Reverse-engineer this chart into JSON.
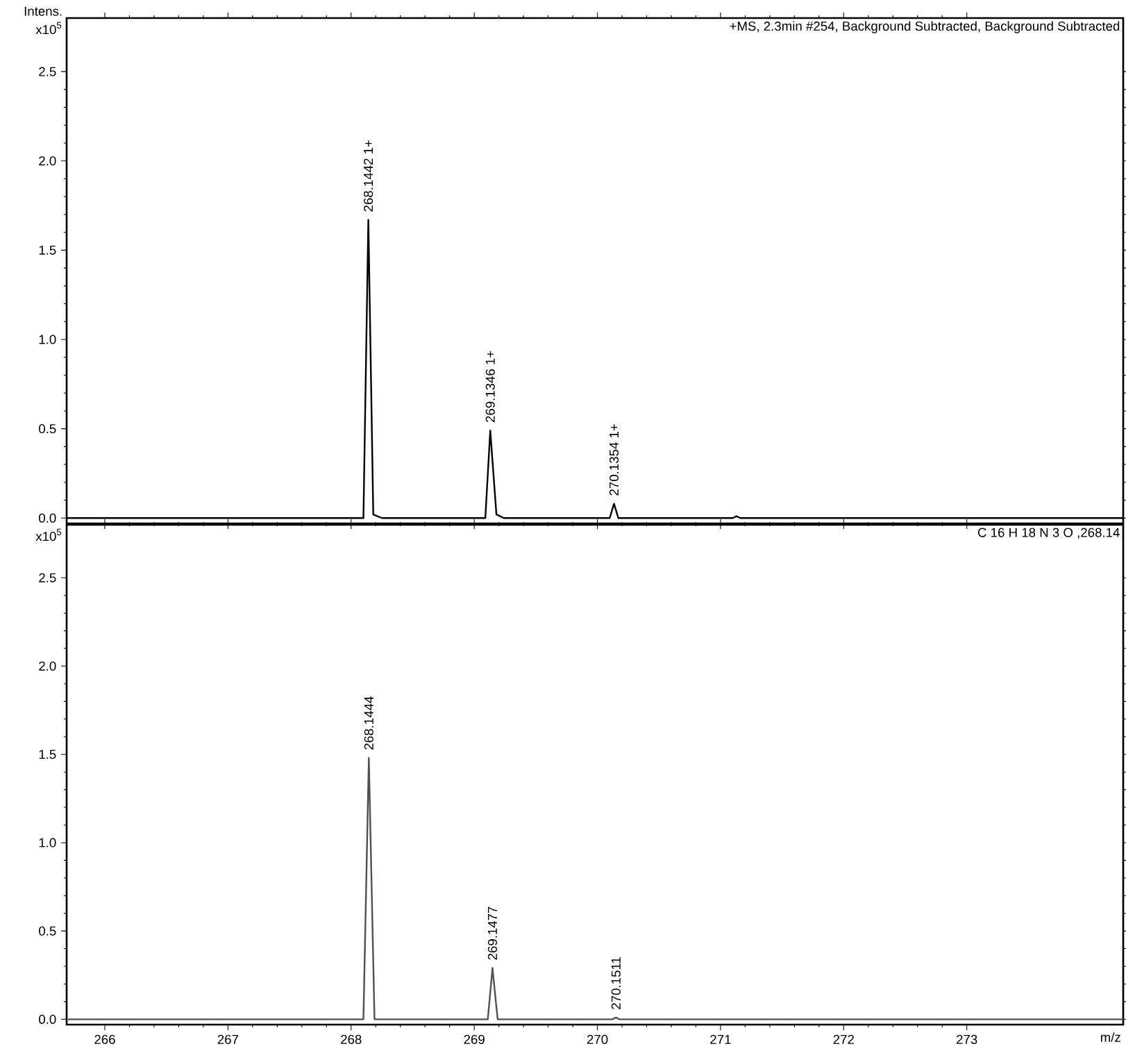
{
  "chart_data": [
    {
      "type": "line",
      "title": "+MS, 2.3min #254, Background Subtracted, Background Subtracted",
      "ylabel": "Intens.",
      "color": "#000000",
      "x": [
        265.69,
        268.1,
        268.14,
        268.18,
        268.25,
        269.09,
        269.13,
        269.18,
        269.24,
        270.1,
        270.135,
        270.17,
        271.1,
        271.13,
        271.16,
        274.27
      ],
      "values": [
        0,
        0,
        1.67,
        0.02,
        0,
        0,
        0.49,
        0.02,
        0,
        0,
        0.08,
        0,
        0,
        0.01,
        0,
        0
      ],
      "xlim": [
        265.69,
        274.27
      ],
      "ylim": [
        -0.03,
        2.8
      ],
      "xticks": [
        266,
        267,
        268,
        269,
        270,
        271,
        272,
        273
      ],
      "yticks": [
        {
          "value": 0,
          "label": "0.0"
        },
        {
          "value": 0.5,
          "label": "0.5"
        },
        {
          "value": 1,
          "label": "1.0"
        },
        {
          "value": 1.5,
          "label": "1.5"
        },
        {
          "value": 2,
          "label": "2.0"
        },
        {
          "value": 2.5,
          "label": "2.5"
        }
      ],
      "tick_labels": "y",
      "grid": false,
      "annotations": [
        "x10$^{5}$",
        {
          "text": "268.1442  1+",
          "x": 268.14,
          "y": 1.67
        },
        {
          "text": "269.1346  1+",
          "x": 269.13,
          "y": 0.49
        },
        {
          "text": "270.1354  1+",
          "x": 270.135,
          "y": 0.08
        }
      ]
    },
    {
      "type": "line",
      "title": "C 16 H 18 N 3 O  ,268.14",
      "xlabel": "m/z",
      "color": "#505050",
      "x": [
        265.69,
        268.1,
        268.144,
        268.19,
        269.11,
        269.148,
        269.19,
        270.12,
        270.151,
        270.18,
        274.27
      ],
      "values": [
        0,
        0,
        1.48,
        0,
        0,
        0.29,
        0,
        0,
        0.01,
        0,
        0
      ],
      "xlim": [
        265.69,
        274.27
      ],
      "ylim": [
        -0.03,
        2.8
      ],
      "xticks": [
        266,
        267,
        268,
        269,
        270,
        271,
        272,
        273
      ],
      "yticks": [
        {
          "value": 0,
          "label": "0.0"
        },
        {
          "value": 0.5,
          "label": "0.5"
        },
        {
          "value": 1,
          "label": "1.0"
        },
        {
          "value": 1.5,
          "label": "1.5"
        },
        {
          "value": 2,
          "label": "2.0"
        },
        {
          "value": 2.5,
          "label": "2.5"
        }
      ],
      "grid": false,
      "annotations": [
        "x10$^{5}$",
        {
          "text": "268.1444",
          "x": 268.144,
          "y": 1.48
        },
        {
          "text": "269.1477",
          "x": 269.148,
          "y": 0.29
        },
        {
          "text": "270.1511",
          "x": 270.151,
          "y": 0.01
        }
      ]
    }
  ]
}
